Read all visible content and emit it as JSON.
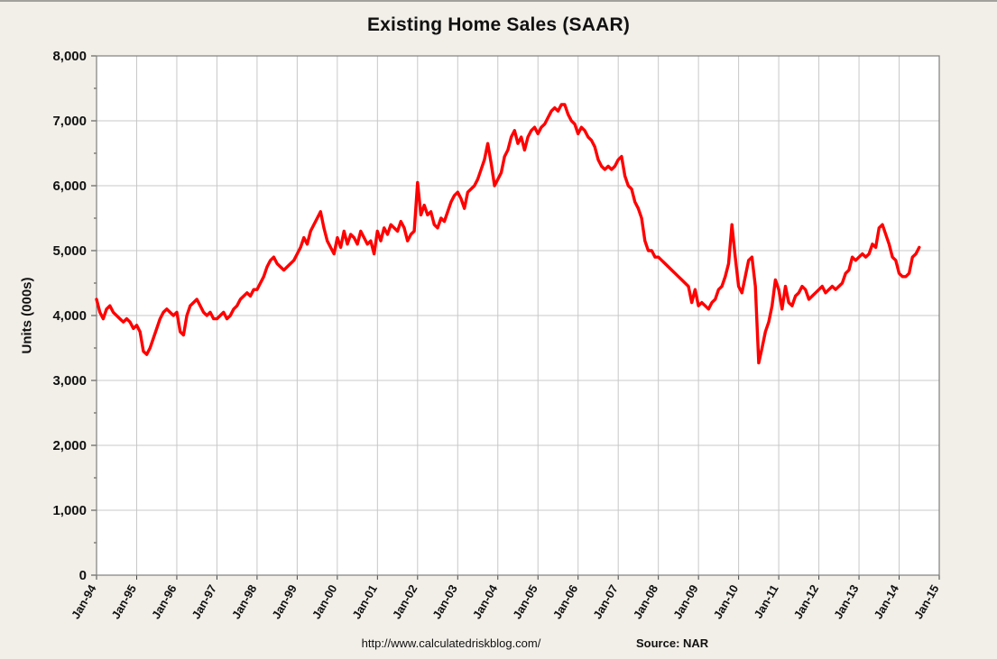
{
  "page": {
    "background_color": "#f2efe9",
    "plot_background_color": "#ffffff",
    "gridline_color": "#c8c8c8",
    "plot_border_color": "#7f7f7f"
  },
  "chart_data": {
    "type": "line",
    "title": "Existing Home Sales (SAAR)",
    "xlabel": "",
    "ylabel": "Units (000s)",
    "ylim": [
      0,
      8000
    ],
    "y_tick_step": 1000,
    "y_minor_tick_step": 500,
    "grid": true,
    "legend": "none",
    "y_tick_labels": [
      "0",
      "1,000",
      "2,000",
      "3,000",
      "4,000",
      "5,000",
      "6,000",
      "7,000",
      "8,000"
    ],
    "x_tick_labels": [
      "Jan-94",
      "Jan-95",
      "Jan-96",
      "Jan-97",
      "Jan-98",
      "Jan-99",
      "Jan-00",
      "Jan-01",
      "Jan-02",
      "Jan-03",
      "Jan-04",
      "Jan-05",
      "Jan-06",
      "Jan-07",
      "Jan-08",
      "Jan-09",
      "Jan-10",
      "Jan-11",
      "Jan-12",
      "Jan-13",
      "Jan-14",
      "Jan-15"
    ],
    "x_total_months": 252,
    "line_color": "#fe0000",
    "line_width": 3.4,
    "series": [
      {
        "name": "Existing Home Sales",
        "start": "Jan-1994",
        "frequency": "monthly",
        "units": "thousands, seasonally adjusted annual rate",
        "color": "#fe0000",
        "values": [
          4250,
          4050,
          3950,
          4100,
          4150,
          4050,
          4000,
          3950,
          3900,
          3950,
          3900,
          3800,
          3850,
          3750,
          3450,
          3400,
          3500,
          3650,
          3800,
          3950,
          4050,
          4100,
          4050,
          4000,
          4050,
          3750,
          3700,
          4000,
          4150,
          4200,
          4250,
          4150,
          4050,
          4000,
          4050,
          3950,
          3950,
          4000,
          4050,
          3950,
          4000,
          4100,
          4150,
          4250,
          4300,
          4350,
          4300,
          4400,
          4400,
          4500,
          4600,
          4750,
          4850,
          4900,
          4800,
          4750,
          4700,
          4750,
          4800,
          4850,
          4950,
          5050,
          5200,
          5100,
          5300,
          5400,
          5500,
          5600,
          5350,
          5150,
          5050,
          4950,
          5200,
          5050,
          5300,
          5100,
          5250,
          5200,
          5100,
          5300,
          5200,
          5100,
          5150,
          4950,
          5300,
          5150,
          5350,
          5250,
          5400,
          5350,
          5300,
          5450,
          5350,
          5150,
          5250,
          5300,
          6050,
          5550,
          5700,
          5550,
          5600,
          5400,
          5350,
          5500,
          5450,
          5600,
          5750,
          5850,
          5900,
          5800,
          5650,
          5900,
          5950,
          6000,
          6100,
          6250,
          6400,
          6650,
          6350,
          6000,
          6100,
          6200,
          6450,
          6550,
          6750,
          6850,
          6650,
          6750,
          6550,
          6750,
          6850,
          6900,
          6800,
          6900,
          6950,
          7050,
          7150,
          7200,
          7150,
          7250,
          7250,
          7100,
          7000,
          6950,
          6800,
          6900,
          6850,
          6750,
          6700,
          6600,
          6400,
          6300,
          6250,
          6300,
          6250,
          6300,
          6400,
          6450,
          6150,
          6000,
          5950,
          5750,
          5650,
          5500,
          5150,
          5000,
          5000,
          4900,
          4900,
          4850,
          4800,
          4750,
          4700,
          4650,
          4600,
          4550,
          4500,
          4450,
          4200,
          4400,
          4150,
          4200,
          4150,
          4100,
          4200,
          4250,
          4400,
          4450,
          4600,
          4800,
          5400,
          4900,
          4450,
          4350,
          4600,
          4850,
          4900,
          4450,
          3270,
          3500,
          3750,
          3900,
          4150,
          4550,
          4400,
          4100,
          4450,
          4200,
          4150,
          4300,
          4350,
          4450,
          4400,
          4250,
          4300,
          4350,
          4400,
          4450,
          4350,
          4400,
          4450,
          4400,
          4450,
          4500,
          4650,
          4700,
          4900,
          4850,
          4900,
          4950,
          4900,
          4950,
          5100,
          5050,
          5350,
          5400,
          5250,
          5100,
          4900,
          4850,
          4650,
          4600,
          4600,
          4650,
          4900,
          4950,
          5050
        ]
      }
    ]
  },
  "footer": {
    "url": "http://www.calculatedriskblog.com/",
    "source": "Source: NAR"
  }
}
